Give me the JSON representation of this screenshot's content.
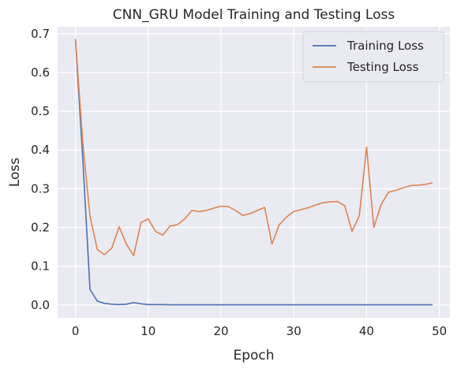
{
  "chart_data": {
    "type": "line",
    "title": "CNN_GRU Model Training and Testing Loss",
    "xlabel": "Epoch",
    "ylabel": "Loss",
    "xlim": [
      -2.45,
      51.45
    ],
    "ylim": [
      -0.033,
      0.718
    ],
    "xticks": [
      0,
      10,
      20,
      30,
      40,
      50
    ],
    "yticks": [
      0.0,
      0.1,
      0.2,
      0.3,
      0.4,
      0.5,
      0.6,
      0.7
    ],
    "xtick_labels": [
      "0",
      "10",
      "20",
      "30",
      "40",
      "50"
    ],
    "ytick_labels": [
      "0.0",
      "0.1",
      "0.2",
      "0.3",
      "0.4",
      "0.5",
      "0.6",
      "0.7"
    ],
    "grid": true,
    "legend_position": "top-right",
    "background": "#eaeaf2",
    "x": [
      0,
      1,
      2,
      3,
      4,
      5,
      6,
      7,
      8,
      9,
      10,
      11,
      12,
      13,
      14,
      15,
      16,
      17,
      18,
      19,
      20,
      21,
      22,
      23,
      24,
      25,
      26,
      27,
      28,
      29,
      30,
      31,
      32,
      33,
      34,
      35,
      36,
      37,
      38,
      39,
      40,
      41,
      42,
      43,
      44,
      45,
      46,
      47,
      48,
      49
    ],
    "series": [
      {
        "name": "Training Loss",
        "color": "#4c72b0",
        "values": [
          0.685,
          0.38,
          0.04,
          0.01,
          0.004,
          0.002,
          0.001,
          0.002,
          0.006,
          0.003,
          0.001,
          0.001,
          0.001,
          0.0005,
          0.0005,
          0.0005,
          0.0005,
          0.0005,
          0.0005,
          0.0005,
          0.0005,
          0.0005,
          0.0005,
          0.0005,
          0.0005,
          0.0005,
          0.0005,
          0.0005,
          0.0005,
          0.0005,
          0.0005,
          0.0005,
          0.0005,
          0.0005,
          0.0005,
          0.0005,
          0.0005,
          0.0005,
          0.0005,
          0.0005,
          0.0005,
          0.0005,
          0.0005,
          0.0005,
          0.0005,
          0.0005,
          0.0005,
          0.0005,
          0.0005,
          0.0005
        ]
      },
      {
        "name": "Testing Loss",
        "color": "#dd8452",
        "values": [
          0.685,
          0.42,
          0.23,
          0.143,
          0.13,
          0.147,
          0.202,
          0.157,
          0.127,
          0.213,
          0.222,
          0.19,
          0.18,
          0.204,
          0.207,
          0.222,
          0.244,
          0.241,
          0.244,
          0.25,
          0.255,
          0.254,
          0.244,
          0.231,
          0.236,
          0.244,
          0.252,
          0.157,
          0.207,
          0.227,
          0.241,
          0.246,
          0.251,
          0.258,
          0.264,
          0.266,
          0.267,
          0.256,
          0.19,
          0.23,
          0.407,
          0.2,
          0.259,
          0.291,
          0.296,
          0.302,
          0.308,
          0.309,
          0.311,
          0.315
        ]
      }
    ]
  }
}
